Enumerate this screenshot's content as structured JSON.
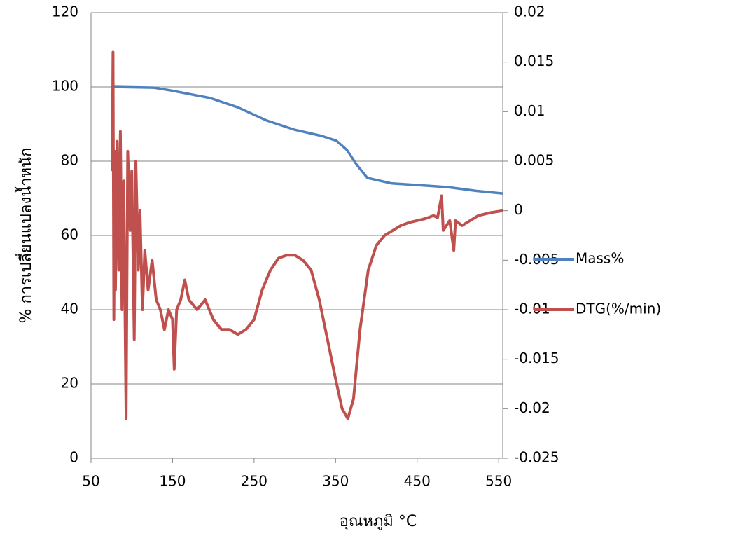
{
  "chart_data": {
    "type": "line",
    "x_label": "อุณหภูมิ °C",
    "y_label": "% การเปลี่ยนแปลงน้ำหนัก",
    "xlim": [
      50,
      555
    ],
    "xticks": [
      50,
      150,
      250,
      350,
      450,
      550
    ],
    "ylim": [
      0,
      120
    ],
    "yticks": [
      0,
      20,
      40,
      60,
      80,
      100,
      120
    ],
    "y2lim": [
      -0.025,
      0.02
    ],
    "y2ticks": [
      -0.025,
      -0.02,
      -0.015,
      -0.01,
      -0.005,
      0,
      0.005,
      0.01,
      0.015,
      0.02
    ],
    "grid": true,
    "legend": "right",
    "series": [
      {
        "name": "Mass%",
        "color": "#4f81bd",
        "x": [
          76,
          127,
          149,
          196,
          230,
          265,
          299,
          333,
          351,
          364,
          376,
          389,
          419,
          454,
          488,
          522,
          555
        ],
        "values": [
          100,
          99.8,
          99,
          97,
          94.5,
          91,
          88.5,
          86.8,
          85.5,
          83,
          79,
          75.5,
          74,
          73.5,
          73,
          72,
          71.3
        ]
      },
      {
        "name": "DTG(%/min)",
        "color": "#c0504d",
        "axis": "y2",
        "x": [
          76,
          77,
          78,
          79,
          80,
          82,
          84,
          86,
          88,
          90,
          93,
          95,
          98,
          100,
          103,
          105,
          108,
          110,
          113,
          116,
          120,
          125,
          130,
          135,
          140,
          145,
          150,
          152,
          155,
          160,
          165,
          170,
          180,
          190,
          200,
          210,
          220,
          230,
          240,
          250,
          260,
          270,
          280,
          290,
          300,
          310,
          320,
          330,
          340,
          350,
          358,
          365,
          372,
          380,
          390,
          400,
          410,
          420,
          430,
          440,
          450,
          460,
          470,
          475,
          480,
          482,
          490,
          495,
          497,
          505,
          515,
          525,
          540,
          555
        ],
        "values": [
          0.004,
          0.016,
          -0.011,
          0.006,
          -0.008,
          0.007,
          -0.006,
          0.008,
          -0.01,
          0.003,
          -0.021,
          0.006,
          -0.002,
          0.004,
          -0.013,
          0.005,
          -0.006,
          0,
          -0.01,
          -0.004,
          -0.008,
          -0.005,
          -0.009,
          -0.01,
          -0.012,
          -0.01,
          -0.011,
          -0.016,
          -0.01,
          -0.009,
          -0.007,
          -0.009,
          -0.01,
          -0.009,
          -0.011,
          -0.012,
          -0.012,
          -0.0125,
          -0.012,
          -0.011,
          -0.008,
          -0.006,
          -0.0048,
          -0.0045,
          -0.0045,
          -0.005,
          -0.006,
          -0.009,
          -0.013,
          -0.017,
          -0.02,
          -0.021,
          -0.019,
          -0.012,
          -0.006,
          -0.0035,
          -0.0025,
          -0.002,
          -0.0015,
          -0.0012,
          -0.001,
          -0.0008,
          -0.0005,
          -0.0007,
          0.0015,
          -0.002,
          -0.001,
          -0.004,
          -0.001,
          -0.0015,
          -0.001,
          -0.0005,
          -0.0002,
          0
        ]
      }
    ]
  }
}
